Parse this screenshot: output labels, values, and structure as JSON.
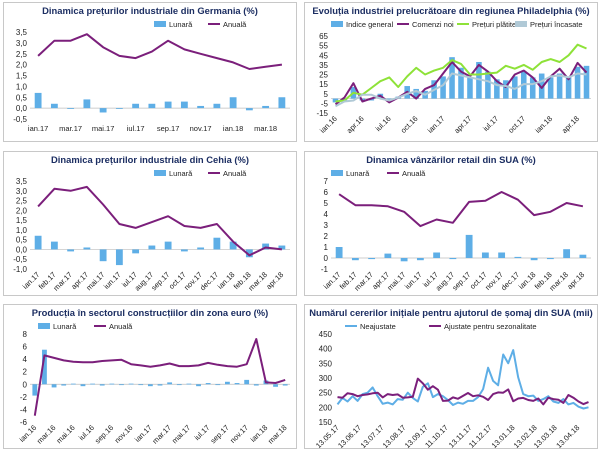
{
  "charts": [
    {
      "id": "de",
      "title": "Dinamica prețurilor industriale din Germania (%)",
      "chart_data": {
        "type": "bar+line",
        "yticks": [
          "3,5",
          "3,0",
          "2,5",
          "2,0",
          "1,5",
          "1,0",
          "0,5",
          "0,0",
          "-0,5"
        ],
        "ylim": [
          -0.5,
          3.5
        ],
        "categories": [
          "ian.17",
          "feb.17",
          "mar.17",
          "apr.17",
          "mai.17",
          "iun.17",
          "iul.17",
          "aug.17",
          "sep.17",
          "oct.17",
          "nov.17",
          "dec.17",
          "ian.18",
          "feb.18",
          "mar.18",
          "apr.18"
        ],
        "xlabels": [
          [
            "ian.17",
            0
          ],
          [
            "mar.17",
            2
          ],
          [
            "mai.17",
            4
          ],
          [
            "iul.17",
            6
          ],
          [
            "sep.17",
            8
          ],
          [
            "nov.17",
            10
          ],
          [
            "ian.18",
            12
          ],
          [
            "mar.18",
            14
          ]
        ],
        "series": [
          {
            "name": "Lunară",
            "kind": "bar",
            "color": "#5eaee6",
            "values": [
              0.7,
              0.2,
              0.0,
              0.4,
              -0.2,
              0.0,
              0.2,
              0.2,
              0.3,
              0.3,
              0.1,
              0.2,
              0.5,
              -0.1,
              0.1,
              0.5
            ]
          },
          {
            "name": "Anuală",
            "kind": "line",
            "color": "#7b1f7b",
            "values": [
              2.4,
              3.1,
              3.1,
              3.4,
              2.8,
              2.4,
              2.3,
              2.6,
              3.1,
              2.7,
              2.5,
              2.3,
              2.1,
              1.8,
              1.9,
              2.0
            ]
          }
        ]
      }
    },
    {
      "id": "phil",
      "title": "Evoluția industriei prelucrătoare din regiunea Philadelphia (%)",
      "chart_data": {
        "type": "bar+line",
        "yticks": [
          "65",
          "55",
          "45",
          "35",
          "25",
          "15",
          "5",
          "-5",
          "-15"
        ],
        "ylim": [
          -15,
          65
        ],
        "categories": [
          "ian.16",
          "feb.16",
          "mar.16",
          "apr.16",
          "mai.16",
          "iun.16",
          "iul.16",
          "aug.16",
          "sep.16",
          "oct.16",
          "nov.16",
          "dec.16",
          "ian.17",
          "feb.17",
          "mar.17",
          "apr.17",
          "mai.17",
          "iun.17",
          "iul.17",
          "aug.17",
          "sep.17",
          "oct.17",
          "nov.17",
          "dec.17",
          "ian.18",
          "feb.18",
          "mar.18",
          "apr.18",
          "mai.18"
        ],
        "xlabels": [
          [
            "ian.16",
            0
          ],
          [
            "apr.16",
            3
          ],
          [
            "iul.16",
            6
          ],
          [
            "oct.16",
            9
          ],
          [
            "ian.17",
            12
          ],
          [
            "apr.17",
            15
          ],
          [
            "iul.17",
            18
          ],
          [
            "oct.17",
            21
          ],
          [
            "ian.18",
            24
          ],
          [
            "apr.18",
            27
          ]
        ],
        "series": [
          {
            "name": "Indice general",
            "kind": "bar",
            "color": "#5eaee6",
            "values": [
              -4,
              -3,
              12,
              -2,
              -2,
              5,
              -3,
              2,
              13,
              10,
              8,
              19,
              23,
              43,
              32,
              22,
              38,
              28,
              20,
              19,
              23,
              28,
              22,
              26,
              22,
              26,
              23,
              33,
              34
            ]
          },
          {
            "name": "Comenzi noi",
            "kind": "line",
            "color": "#7b1f7b",
            "values": [
              -6,
              1,
              16,
              -3,
              0,
              3,
              -4,
              1,
              7,
              0,
              10,
              14,
              26,
              38,
              28,
              23,
              35,
              28,
              18,
              12,
              25,
              29,
              22,
              11,
              23,
              31,
              20,
              37,
              27
            ]
          },
          {
            "name": "Prețuri plătite",
            "kind": "line",
            "color": "#8ee238",
            "values": [
              -3,
              -2,
              6,
              4,
              11,
              18,
              22,
              12,
              23,
              32,
              25,
              29,
              32,
              40,
              36,
              25,
              25,
              26,
              27,
              34,
              31,
              35,
              30,
              38,
              41,
              38,
              45,
              56,
              52
            ]
          },
          {
            "name": "Prețuri încasate",
            "kind": "line",
            "color": "#b0c9d6",
            "values": [
              -8,
              -3,
              -2,
              4,
              4,
              0,
              -2,
              1,
              5,
              8,
              4,
              9,
              14,
              26,
              24,
              22,
              20,
              18,
              14,
              13,
              10,
              15,
              15,
              18,
              23,
              24,
              22,
              26,
              25
            ]
          }
        ]
      }
    },
    {
      "id": "cz",
      "title": "Dinamica prețurilor industriale din Cehia (%)",
      "chart_data": {
        "type": "bar+line",
        "yticks": [
          "3,5",
          "3,0",
          "2,5",
          "2,0",
          "1,5",
          "1,0",
          "0,5",
          "0,0",
          "-0,5",
          "-1,0"
        ],
        "ylim": [
          -1.0,
          3.5
        ],
        "categories": [
          "ian.17",
          "feb.17",
          "mar.17",
          "apr.17",
          "mai.17",
          "iun.17",
          "iul.17",
          "aug.17",
          "sep.17",
          "oct.17",
          "nov.17",
          "dec.17",
          "ian.18",
          "feb.18",
          "mar.18",
          "apr.18"
        ],
        "xlabels": [
          [
            "ian.17",
            0
          ],
          [
            "feb.17",
            1
          ],
          [
            "mar.17",
            2
          ],
          [
            "apr.17",
            3
          ],
          [
            "mai.17",
            4
          ],
          [
            "iun.17",
            5
          ],
          [
            "iul.17",
            6
          ],
          [
            "aug.17",
            7
          ],
          [
            "sep.17",
            8
          ],
          [
            "oct.17",
            9
          ],
          [
            "nov.17",
            10
          ],
          [
            "dec.17",
            11
          ],
          [
            "ian.18",
            12
          ],
          [
            "feb.18",
            13
          ],
          [
            "mar.18",
            14
          ],
          [
            "apr.18",
            15
          ]
        ],
        "series": [
          {
            "name": "Lunară",
            "kind": "bar",
            "color": "#5eaee6",
            "values": [
              0.7,
              0.4,
              -0.1,
              0.1,
              -0.6,
              -0.8,
              -0.2,
              0.2,
              0.4,
              -0.1,
              0.1,
              0.6,
              0.4,
              -0.4,
              0.3,
              0.2
            ]
          },
          {
            "name": "Anuală",
            "kind": "line",
            "color": "#7b1f7b",
            "values": [
              2.2,
              3.1,
              3.0,
              3.2,
              2.3,
              1.3,
              1.1,
              1.4,
              1.7,
              1.2,
              1.1,
              1.3,
              0.4,
              -0.3,
              0.1,
              0.0
            ]
          }
        ]
      }
    },
    {
      "id": "us",
      "title": "Dinamica vânzărilor retail din SUA (%)",
      "chart_data": {
        "type": "bar+line",
        "yticks": [
          "7",
          "6",
          "5",
          "4",
          "3",
          "2",
          "1",
          "0",
          "-1"
        ],
        "ylim": [
          -1,
          7
        ],
        "categories": [
          "ian.17",
          "feb.17",
          "mar.17",
          "apr.17",
          "mai.17",
          "iun.17",
          "iul.17",
          "aug.17",
          "sep.17",
          "oct.17",
          "nov.17",
          "dec.17",
          "ian.18",
          "feb.18",
          "mar.18",
          "apr.18"
        ],
        "xlabels": [
          [
            "ian.17",
            0
          ],
          [
            "feb.17",
            1
          ],
          [
            "mar.17",
            2
          ],
          [
            "apr.17",
            3
          ],
          [
            "mai.17",
            4
          ],
          [
            "iun.17",
            5
          ],
          [
            "iul.17",
            6
          ],
          [
            "aug.17",
            7
          ],
          [
            "sep.17",
            8
          ],
          [
            "oct.17",
            9
          ],
          [
            "nov.17",
            10
          ],
          [
            "dec.17",
            11
          ],
          [
            "ian.18",
            12
          ],
          [
            "feb.18",
            13
          ],
          [
            "mar.18",
            14
          ],
          [
            "apr.18",
            15
          ]
        ],
        "series": [
          {
            "name": "Lunară",
            "kind": "bar",
            "color": "#5eaee6",
            "values": [
              1.0,
              -0.2,
              -0.1,
              0.4,
              -0.3,
              -0.2,
              0.5,
              -0.1,
              2.1,
              0.5,
              0.5,
              0.1,
              -0.2,
              -0.1,
              0.8,
              0.3
            ]
          },
          {
            "name": "Anuală",
            "kind": "line",
            "color": "#7b1f7b",
            "values": [
              5.8,
              4.8,
              4.8,
              4.7,
              4.2,
              2.9,
              3.5,
              3.2,
              5.1,
              5.2,
              6.0,
              5.3,
              3.9,
              4.2,
              5.0,
              4.7
            ]
          }
        ]
      }
    },
    {
      "id": "eu",
      "title": "Producția în sectorul construcțiilor din zona euro (%)",
      "chart_data": {
        "type": "bar+line",
        "yticks": [
          "8",
          "6",
          "4",
          "2",
          "0",
          "-2",
          "-4",
          "-6"
        ],
        "ylim": [
          -6,
          8
        ],
        "categories": [
          "ian.16",
          "feb.16",
          "mar.16",
          "apr.16",
          "mai.16",
          "iun.16",
          "iul.16",
          "aug.16",
          "sep.16",
          "oct.16",
          "nov.16",
          "dec.16",
          "ian.17",
          "feb.17",
          "mar.17",
          "apr.17",
          "mai.17",
          "iun.17",
          "iul.17",
          "aug.17",
          "sep.17",
          "oct.17",
          "nov.17",
          "dec.17",
          "ian.18",
          "feb.18",
          "mar.18"
        ],
        "xlabels": [
          [
            "ian.16",
            0
          ],
          [
            "mar.16",
            2
          ],
          [
            "mai.16",
            4
          ],
          [
            "iul.16",
            6
          ],
          [
            "sep.16",
            8
          ],
          [
            "nov.16",
            10
          ],
          [
            "ian.17",
            12
          ],
          [
            "mar.17",
            14
          ],
          [
            "mai.17",
            16
          ],
          [
            "iul.17",
            18
          ],
          [
            "sep.17",
            20
          ],
          [
            "nov.17",
            22
          ],
          [
            "ian.18",
            24
          ],
          [
            "mar.18",
            26
          ]
        ],
        "series": [
          {
            "name": "Lunară",
            "kind": "bar",
            "color": "#5eaee6",
            "values": [
              -1.8,
              5.5,
              -0.5,
              -0.2,
              0.1,
              -0.3,
              0.1,
              -0.2,
              0.1,
              -0.1,
              0.1,
              -0.1,
              -0.3,
              -0.2,
              0.3,
              -0.1,
              0.1,
              -0.3,
              0.2,
              -0.1,
              0.4,
              0.2,
              0.7,
              -0.2,
              0.6,
              -0.4,
              -0.2
            ]
          },
          {
            "name": "Anuală",
            "kind": "line",
            "color": "#7b1f7b",
            "values": [
              -5.0,
              4.6,
              4.2,
              3.8,
              3.6,
              3.5,
              3.5,
              3.7,
              3.8,
              3.9,
              3.2,
              3.0,
              2.8,
              3.0,
              3.3,
              2.9,
              2.9,
              3.0,
              3.4,
              3.1,
              2.9,
              2.8,
              3.2,
              7.2,
              0.3,
              0.2,
              0.7
            ]
          }
        ]
      }
    },
    {
      "id": "claims",
      "title": "Numărul cererilor inițiale pentru ajutorul de șomaj din SUA (mii)",
      "chart_data": {
        "type": "line",
        "yticks": [
          "450",
          "400",
          "350",
          "300",
          "250",
          "200",
          "150"
        ],
        "ylim": [
          150,
          450
        ],
        "categories": [
          "13.05.17",
          "20.05.17",
          "27.05.17",
          "03.06.17",
          "10.06.17",
          "17.06.17",
          "24.06.17",
          "01.07.17",
          "08.07.17",
          "15.07.17",
          "22.07.17",
          "29.07.17",
          "05.08.17",
          "12.08.17",
          "19.08.17",
          "26.08.17",
          "02.09.17",
          "09.09.17",
          "16.09.17",
          "23.09.17",
          "30.09.17",
          "07.10.17",
          "14.10.17",
          "21.10.17",
          "28.10.17",
          "04.11.17",
          "11.11.17",
          "18.11.17",
          "25.11.17",
          "02.12.17",
          "09.12.17",
          "16.12.17",
          "23.12.17",
          "30.12.17",
          "06.01.18",
          "13.01.18",
          "20.01.18",
          "27.01.18",
          "03.02.18",
          "10.02.18",
          "17.02.18",
          "24.02.18",
          "03.03.18",
          "10.03.18",
          "17.03.18",
          "24.03.18",
          "31.03.18",
          "07.04.18",
          "14.04.18",
          "21.04.18",
          "28.04.18"
        ],
        "xlabels": [
          [
            "13.05.17",
            0
          ],
          [
            "13.06.17",
            4.4
          ],
          [
            "13.07.17",
            8.9
          ],
          [
            "13.08.17",
            13.3
          ],
          [
            "13.09.17",
            17.7
          ],
          [
            "11.10.17",
            21.7
          ],
          [
            "13.11.17",
            26.4
          ],
          [
            "11.12.17",
            30.4
          ],
          [
            "13.01.18",
            35
          ],
          [
            "13.02.18",
            39.4
          ],
          [
            "13.03.18",
            43.4
          ],
          [
            "13.04.18",
            47.9
          ]
        ],
        "series": [
          {
            "name": "Neajustate",
            "kind": "line",
            "color": "#5eaee6",
            "values": [
              210,
              232,
              220,
              238,
              222,
              245,
              250,
              268,
              238,
              212,
              216,
              210,
              228,
              226,
              250,
              232,
              220,
              270,
              282,
              235,
              245,
              238,
              225,
              208,
              216,
              212,
              222,
              222,
              235,
              262,
              335,
              290,
              275,
              380,
              350,
              395,
              302,
              245,
              238,
              240,
              222,
              228,
              238,
              220,
              215,
              228,
              210,
              215,
              202,
              196,
              200
            ]
          },
          {
            "name": "Ajustate pentru sezonalitate",
            "kind": "line",
            "color": "#7b1f7b",
            "values": [
              235,
              233,
              248,
              245,
              238,
              242,
              244,
              248,
              250,
              234,
              245,
              242,
              244,
              233,
              234,
              236,
              298,
              282,
              260,
              272,
              260,
              222,
              223,
              234,
              229,
              239,
              249,
              238,
              241,
              236,
              225,
              245,
              251,
              250,
              261,
              221,
              230,
              232,
              225,
              222,
              230,
              210,
              233,
              228,
              226,
              215,
              242,
              233,
              220,
              211,
              218
            ]
          }
        ]
      }
    }
  ]
}
